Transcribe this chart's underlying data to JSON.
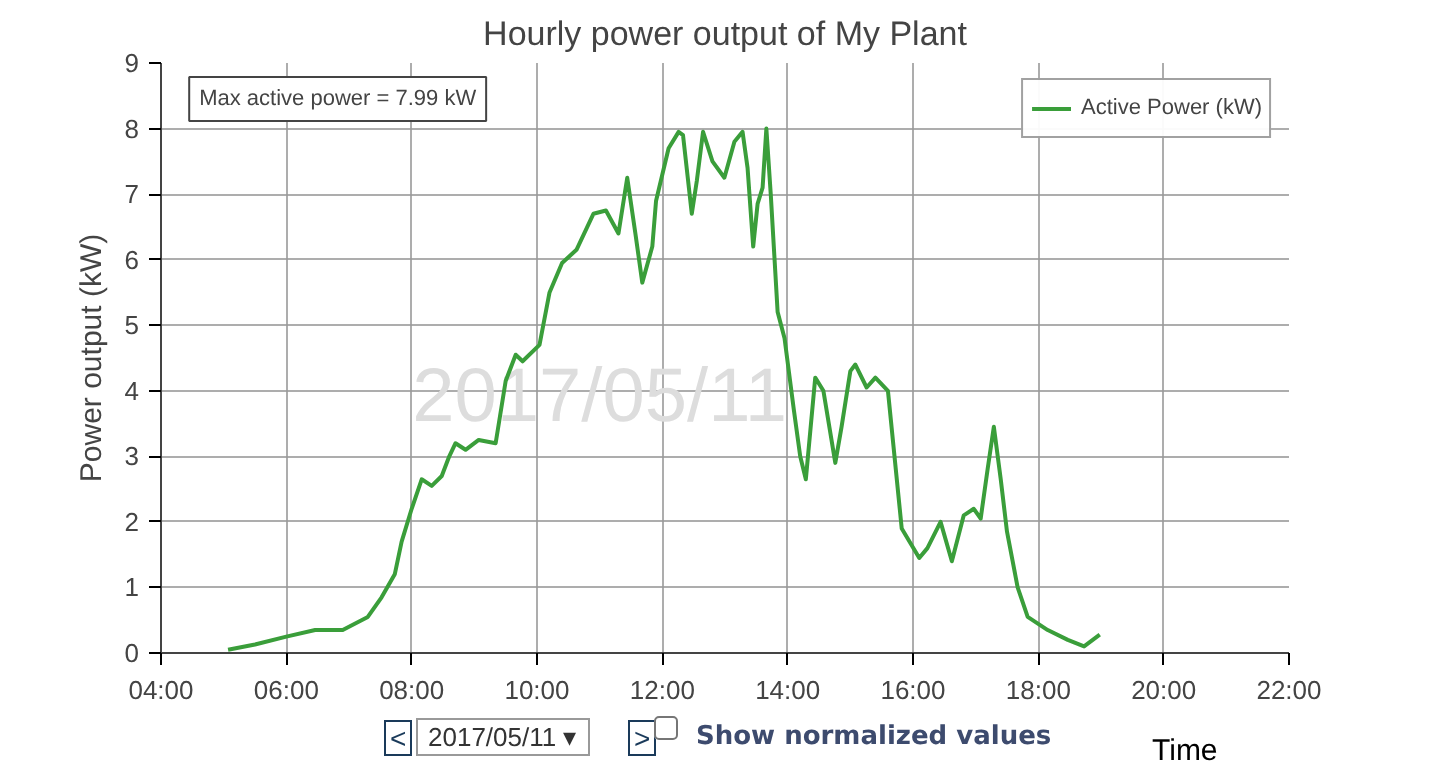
{
  "chart_data": {
    "type": "line",
    "title": "Hourly power output of My Plant",
    "xlabel": "Time",
    "ylabel": "Power output (kW)",
    "annotations": [
      "Max active power = 7.99 kW",
      "2017/05/11",
      "<",
      "2017/05/11 ▾",
      ">",
      "Show normalized values"
    ],
    "x": [
      5.07,
      5.5,
      6.0,
      6.46,
      6.9,
      7.3,
      7.52,
      7.73,
      7.84,
      8.0,
      8.16,
      8.32,
      8.48,
      8.6,
      8.7,
      8.86,
      9.07,
      9.34,
      9.5,
      9.66,
      9.77,
      10.04,
      10.2,
      10.4,
      10.63,
      10.9,
      11.1,
      11.3,
      11.44,
      11.57,
      11.68,
      11.84,
      11.9,
      12.1,
      12.26,
      12.33,
      12.47,
      12.55,
      12.65,
      12.8,
      12.99,
      13.15,
      13.28,
      13.36,
      13.45,
      13.52,
      13.6,
      13.66,
      13.73,
      13.84,
      13.95,
      14.1,
      14.2,
      14.29,
      14.44,
      14.57,
      14.76,
      14.86,
      15.0,
      15.08,
      15.26,
      15.4,
      15.6,
      15.82,
      16.1,
      16.23,
      16.44,
      16.62,
      16.81,
      16.97,
      17.08,
      17.19,
      17.29,
      17.4,
      17.5,
      17.67,
      17.83,
      18.15,
      18.47,
      18.73,
      18.98
    ],
    "series": [
      {
        "name": "Active Power (kW)",
        "color": "#3a9e3a",
        "values": [
          0.05,
          0.13,
          0.25,
          0.35,
          0.35,
          0.55,
          0.85,
          1.2,
          1.7,
          2.2,
          2.65,
          2.55,
          2.7,
          3.0,
          3.2,
          3.1,
          3.25,
          3.2,
          4.15,
          4.55,
          4.45,
          4.7,
          5.5,
          5.95,
          6.15,
          6.7,
          6.75,
          6.4,
          7.25,
          6.4,
          5.65,
          6.2,
          6.9,
          7.7,
          7.95,
          7.9,
          6.7,
          7.2,
          7.95,
          7.5,
          7.25,
          7.8,
          7.95,
          7.4,
          6.2,
          6.85,
          7.1,
          8.0,
          7.0,
          5.2,
          4.8,
          3.7,
          3.0,
          2.65,
          4.2,
          4.0,
          2.9,
          3.45,
          4.3,
          4.4,
          4.05,
          4.2,
          4.0,
          1.9,
          1.45,
          1.6,
          2.0,
          1.4,
          2.1,
          2.2,
          2.05,
          2.8,
          3.45,
          2.65,
          1.85,
          1.0,
          0.55,
          0.35,
          0.2,
          0.1,
          0.28
        ]
      }
    ],
    "xlim": [
      4,
      22
    ],
    "xticks": [
      {
        "value": 4,
        "label": "04:00"
      },
      {
        "value": 6,
        "label": "06:00"
      },
      {
        "value": 8,
        "label": "08:00"
      },
      {
        "value": 10,
        "label": "10:00"
      },
      {
        "value": 12,
        "label": "12:00"
      },
      {
        "value": 14,
        "label": "14:00"
      },
      {
        "value": 16,
        "label": "16:00"
      },
      {
        "value": 18,
        "label": "18:00"
      },
      {
        "value": 20,
        "label": "20:00"
      },
      {
        "value": 22,
        "label": "22:00"
      }
    ],
    "ylim": [
      0,
      9
    ],
    "yticks": [
      0,
      1,
      2,
      3,
      4,
      5,
      6,
      7,
      8,
      9
    ],
    "grid": true,
    "legend": "top right",
    "marker": "none",
    "line_style": "solid"
  }
}
